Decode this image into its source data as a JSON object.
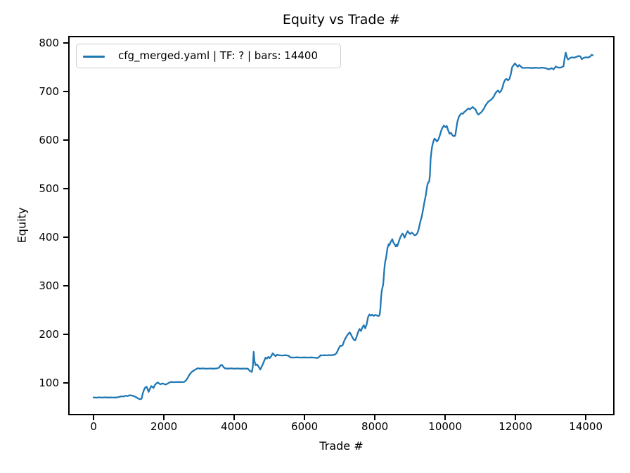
{
  "figure": {
    "title": "Equity vs Trade #",
    "xlabel": "Trade #",
    "ylabel": "Equity",
    "legend": {
      "label": "cfg_merged.yaml | TF: ? | bars: 14400",
      "line_color": "#1f77b4"
    },
    "colors": {
      "line": "#1f77b4",
      "spine": "#000000",
      "tick": "#000000",
      "legend_border": "#cccccc",
      "background": "#ffffff"
    }
  },
  "chart_data": {
    "type": "line",
    "title": "Equity vs Trade #",
    "xlabel": "Trade #",
    "ylabel": "Equity",
    "grid": false,
    "legend_position": "upper left",
    "xlim": [
      -723,
      14817
    ],
    "ylim": [
      33.3,
      814.5
    ],
    "x_ticks": [
      0,
      2000,
      4000,
      6000,
      8000,
      10000,
      12000,
      14000
    ],
    "y_ticks": [
      100,
      200,
      300,
      400,
      500,
      600,
      700,
      800
    ],
    "series": [
      {
        "name": "cfg_merged.yaml | TF: ? | bars: 14400",
        "color": "#1f77b4",
        "points": [
          [
            0,
            70
          ],
          [
            80,
            69.6
          ],
          [
            160,
            70.2
          ],
          [
            240,
            69.7
          ],
          [
            320,
            70.3
          ],
          [
            400,
            69.8
          ],
          [
            480,
            70.1
          ],
          [
            560,
            69.7
          ],
          [
            640,
            70
          ],
          [
            720,
            71
          ],
          [
            790,
            72.5
          ],
          [
            850,
            71.8
          ],
          [
            910,
            73.6
          ],
          [
            970,
            72.9
          ],
          [
            1030,
            74.6
          ],
          [
            1090,
            73.9
          ],
          [
            1150,
            72.6
          ],
          [
            1210,
            70.6
          ],
          [
            1270,
            67.6
          ],
          [
            1320,
            66.3
          ],
          [
            1365,
            67.5
          ],
          [
            1400,
            79
          ],
          [
            1435,
            86
          ],
          [
            1470,
            90.5
          ],
          [
            1505,
            92
          ],
          [
            1535,
            87
          ],
          [
            1565,
            81.5
          ],
          [
            1600,
            87.5
          ],
          [
            1640,
            93.5
          ],
          [
            1675,
            91.5
          ],
          [
            1705,
            89.5
          ],
          [
            1740,
            95.5
          ],
          [
            1780,
            98.5
          ],
          [
            1825,
            101
          ],
          [
            1865,
            98.5
          ],
          [
            1905,
            97
          ],
          [
            1950,
            99
          ],
          [
            2000,
            98
          ],
          [
            2050,
            96.5
          ],
          [
            2100,
            98.5
          ],
          [
            2150,
            100.5
          ],
          [
            2205,
            102
          ],
          [
            2290,
            101.4
          ],
          [
            2380,
            102
          ],
          [
            2470,
            101.5
          ],
          [
            2575,
            102
          ],
          [
            2630,
            105
          ],
          [
            2680,
            111
          ],
          [
            2735,
            118
          ],
          [
            2790,
            122.5
          ],
          [
            2850,
            125.5
          ],
          [
            2905,
            128
          ],
          [
            2960,
            130.3
          ],
          [
            3015,
            129.2
          ],
          [
            3110,
            129.8
          ],
          [
            3210,
            129.1
          ],
          [
            3310,
            129.7
          ],
          [
            3410,
            129.2
          ],
          [
            3510,
            129.8
          ],
          [
            3570,
            131.5
          ],
          [
            3615,
            136.5
          ],
          [
            3655,
            136.8
          ],
          [
            3695,
            132.5
          ],
          [
            3735,
            130
          ],
          [
            3825,
            129.4
          ],
          [
            3915,
            129.8
          ],
          [
            4005,
            129.3
          ],
          [
            4095,
            129.7
          ],
          [
            4185,
            129.2
          ],
          [
            4280,
            129.6
          ],
          [
            4385,
            129.3
          ],
          [
            4450,
            124.5
          ],
          [
            4500,
            122.5
          ],
          [
            4528,
            134
          ],
          [
            4552,
            164
          ],
          [
            4575,
            145
          ],
          [
            4610,
            136.5
          ],
          [
            4650,
            138
          ],
          [
            4695,
            133.5
          ],
          [
            4740,
            127.5
          ],
          [
            4800,
            136
          ],
          [
            4845,
            144
          ],
          [
            4890,
            152
          ],
          [
            4930,
            150
          ],
          [
            4970,
            153.5
          ],
          [
            5010,
            151
          ],
          [
            5055,
            155.5
          ],
          [
            5095,
            161
          ],
          [
            5135,
            157.5
          ],
          [
            5175,
            155
          ],
          [
            5215,
            158
          ],
          [
            5265,
            157
          ],
          [
            5355,
            156.4
          ],
          [
            5455,
            157
          ],
          [
            5545,
            156
          ],
          [
            5595,
            152.5
          ],
          [
            5690,
            152.2
          ],
          [
            5790,
            152.6
          ],
          [
            5890,
            152.1
          ],
          [
            5990,
            152.5
          ],
          [
            6090,
            152.1
          ],
          [
            6190,
            152.4
          ],
          [
            6290,
            152
          ],
          [
            6365,
            151.2
          ],
          [
            6425,
            154
          ],
          [
            6455,
            157
          ],
          [
            6510,
            156.5
          ],
          [
            6570,
            157
          ],
          [
            6630,
            156.6
          ],
          [
            6690,
            157.2
          ],
          [
            6750,
            156.8
          ],
          [
            6810,
            157.3
          ],
          [
            6865,
            158.5
          ],
          [
            6905,
            161
          ],
          [
            6935,
            165
          ],
          [
            6965,
            170
          ],
          [
            6995,
            174
          ],
          [
            7025,
            177
          ],
          [
            7055,
            176
          ],
          [
            7085,
            178
          ],
          [
            7125,
            186
          ],
          [
            7165,
            192
          ],
          [
            7205,
            197
          ],
          [
            7245,
            201
          ],
          [
            7285,
            204
          ],
          [
            7325,
            199
          ],
          [
            7365,
            193
          ],
          [
            7405,
            188.5
          ],
          [
            7445,
            188
          ],
          [
            7485,
            196
          ],
          [
            7525,
            205
          ],
          [
            7565,
            211
          ],
          [
            7605,
            207
          ],
          [
            7645,
            214
          ],
          [
            7685,
            219
          ],
          [
            7725,
            212.5
          ],
          [
            7765,
            220
          ],
          [
            7805,
            235
          ],
          [
            7845,
            241
          ],
          [
            7885,
            238.5
          ],
          [
            7925,
            240.5
          ],
          [
            7965,
            238
          ],
          [
            8005,
            240
          ],
          [
            8055,
            239
          ],
          [
            8105,
            237.5
          ],
          [
            8135,
            240
          ],
          [
            8155,
            252
          ],
          [
            8175,
            274
          ],
          [
            8195,
            289
          ],
          [
            8215,
            296
          ],
          [
            8235,
            302
          ],
          [
            8255,
            320
          ],
          [
            8275,
            339
          ],
          [
            8295,
            350
          ],
          [
            8315,
            356
          ],
          [
            8335,
            366
          ],
          [
            8355,
            376
          ],
          [
            8375,
            382
          ],
          [
            8395,
            385.5
          ],
          [
            8415,
            383.5
          ],
          [
            8435,
            388
          ],
          [
            8455,
            391
          ],
          [
            8475,
            393
          ],
          [
            8495,
            396
          ],
          [
            8515,
            391.5
          ],
          [
            8535,
            388
          ],
          [
            8555,
            386
          ],
          [
            8575,
            383.5
          ],
          [
            8595,
            381
          ],
          [
            8615,
            384.5
          ],
          [
            8635,
            381.5
          ],
          [
            8665,
            387
          ],
          [
            8695,
            394
          ],
          [
            8725,
            400
          ],
          [
            8755,
            404
          ],
          [
            8785,
            407.5
          ],
          [
            8815,
            404
          ],
          [
            8845,
            399
          ],
          [
            8875,
            404
          ],
          [
            8905,
            409
          ],
          [
            8935,
            412.5
          ],
          [
            8965,
            409
          ],
          [
            9005,
            406.5
          ],
          [
            9045,
            409.5
          ],
          [
            9085,
            407.5
          ],
          [
            9125,
            404
          ],
          [
            9165,
            404.5
          ],
          [
            9205,
            408
          ],
          [
            9240,
            415
          ],
          [
            9270,
            425
          ],
          [
            9300,
            434
          ],
          [
            9330,
            441
          ],
          [
            9360,
            452
          ],
          [
            9390,
            464
          ],
          [
            9420,
            476
          ],
          [
            9445,
            485
          ],
          [
            9470,
            498
          ],
          [
            9495,
            508
          ],
          [
            9520,
            513
          ],
          [
            9545,
            514.5
          ],
          [
            9565,
            527
          ],
          [
            9585,
            560
          ],
          [
            9605,
            574
          ],
          [
            9625,
            585
          ],
          [
            9650,
            593
          ],
          [
            9670,
            598
          ],
          [
            9695,
            603
          ],
          [
            9725,
            601
          ],
          [
            9765,
            597
          ],
          [
            9805,
            601
          ],
          [
            9845,
            609
          ],
          [
            9885,
            619
          ],
          [
            9925,
            626
          ],
          [
            9965,
            630
          ],
          [
            10005,
            626.5
          ],
          [
            10045,
            629
          ],
          [
            10085,
            620
          ],
          [
            10125,
            613
          ],
          [
            10165,
            615
          ],
          [
            10205,
            610
          ],
          [
            10245,
            608
          ],
          [
            10285,
            609
          ],
          [
            10305,
            618
          ],
          [
            10345,
            637
          ],
          [
            10385,
            647
          ],
          [
            10425,
            652
          ],
          [
            10465,
            655
          ],
          [
            10505,
            654
          ],
          [
            10545,
            658
          ],
          [
            10585,
            660
          ],
          [
            10625,
            663
          ],
          [
            10665,
            665
          ],
          [
            10705,
            663.5
          ],
          [
            10745,
            666
          ],
          [
            10785,
            668
          ],
          [
            10825,
            665
          ],
          [
            10865,
            663
          ],
          [
            10905,
            656
          ],
          [
            10945,
            652.5
          ],
          [
            10985,
            655
          ],
          [
            11025,
            657
          ],
          [
            11065,
            661
          ],
          [
            11105,
            665
          ],
          [
            11145,
            671
          ],
          [
            11185,
            675
          ],
          [
            11225,
            679
          ],
          [
            11265,
            681
          ],
          [
            11305,
            683
          ],
          [
            11345,
            686
          ],
          [
            11385,
            690
          ],
          [
            11425,
            696
          ],
          [
            11465,
            700
          ],
          [
            11505,
            702
          ],
          [
            11545,
            698
          ],
          [
            11585,
            701
          ],
          [
            11625,
            707
          ],
          [
            11665,
            718
          ],
          [
            11705,
            724
          ],
          [
            11745,
            726
          ],
          [
            11785,
            723
          ],
          [
            11825,
            725.5
          ],
          [
            11865,
            735
          ],
          [
            11905,
            750
          ],
          [
            11945,
            754
          ],
          [
            11985,
            758
          ],
          [
            12025,
            754
          ],
          [
            12065,
            751
          ],
          [
            12105,
            754.5
          ],
          [
            12145,
            752
          ],
          [
            12185,
            749
          ],
          [
            12265,
            748.5
          ],
          [
            12365,
            749.2
          ],
          [
            12465,
            748.3
          ],
          [
            12565,
            749
          ],
          [
            12665,
            748.4
          ],
          [
            12765,
            749.1
          ],
          [
            12865,
            748
          ],
          [
            12945,
            745.5
          ],
          [
            13025,
            748
          ],
          [
            13085,
            745.8
          ],
          [
            13145,
            751.5
          ],
          [
            13225,
            749
          ],
          [
            13305,
            749.5
          ],
          [
            13365,
            752
          ],
          [
            13400,
            769
          ],
          [
            13430,
            780
          ],
          [
            13465,
            770
          ],
          [
            13495,
            766
          ],
          [
            13545,
            768.5
          ],
          [
            13605,
            770.5
          ],
          [
            13665,
            769.5
          ],
          [
            13725,
            771
          ],
          [
            13785,
            773
          ],
          [
            13845,
            772.5
          ],
          [
            13885,
            766.5
          ],
          [
            13945,
            769.5
          ],
          [
            14005,
            770.5
          ],
          [
            14065,
            769.8
          ],
          [
            14125,
            772
          ],
          [
            14165,
            775.5
          ],
          [
            14200,
            774.5
          ]
        ]
      }
    ]
  }
}
